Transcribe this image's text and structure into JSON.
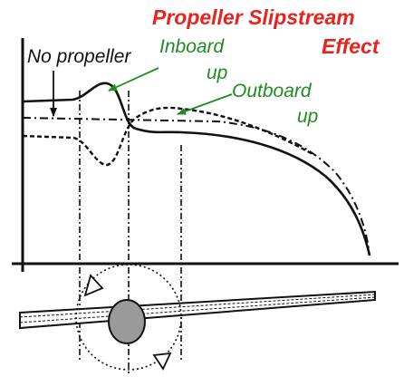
{
  "title": {
    "line1": "Propeller Slipstream",
    "line2": "Effect"
  },
  "labels": {
    "no_propeller": "No propeller",
    "inboard_line1": "Inboard",
    "inboard_line2": "up",
    "outboard_line1": "Outboard",
    "outboard_line2": "up"
  },
  "colors": {
    "title": "#e8231d",
    "annotation": "#1f8c22",
    "annotation_arrow": "#1f8c22",
    "ink": "#111111"
  }
}
